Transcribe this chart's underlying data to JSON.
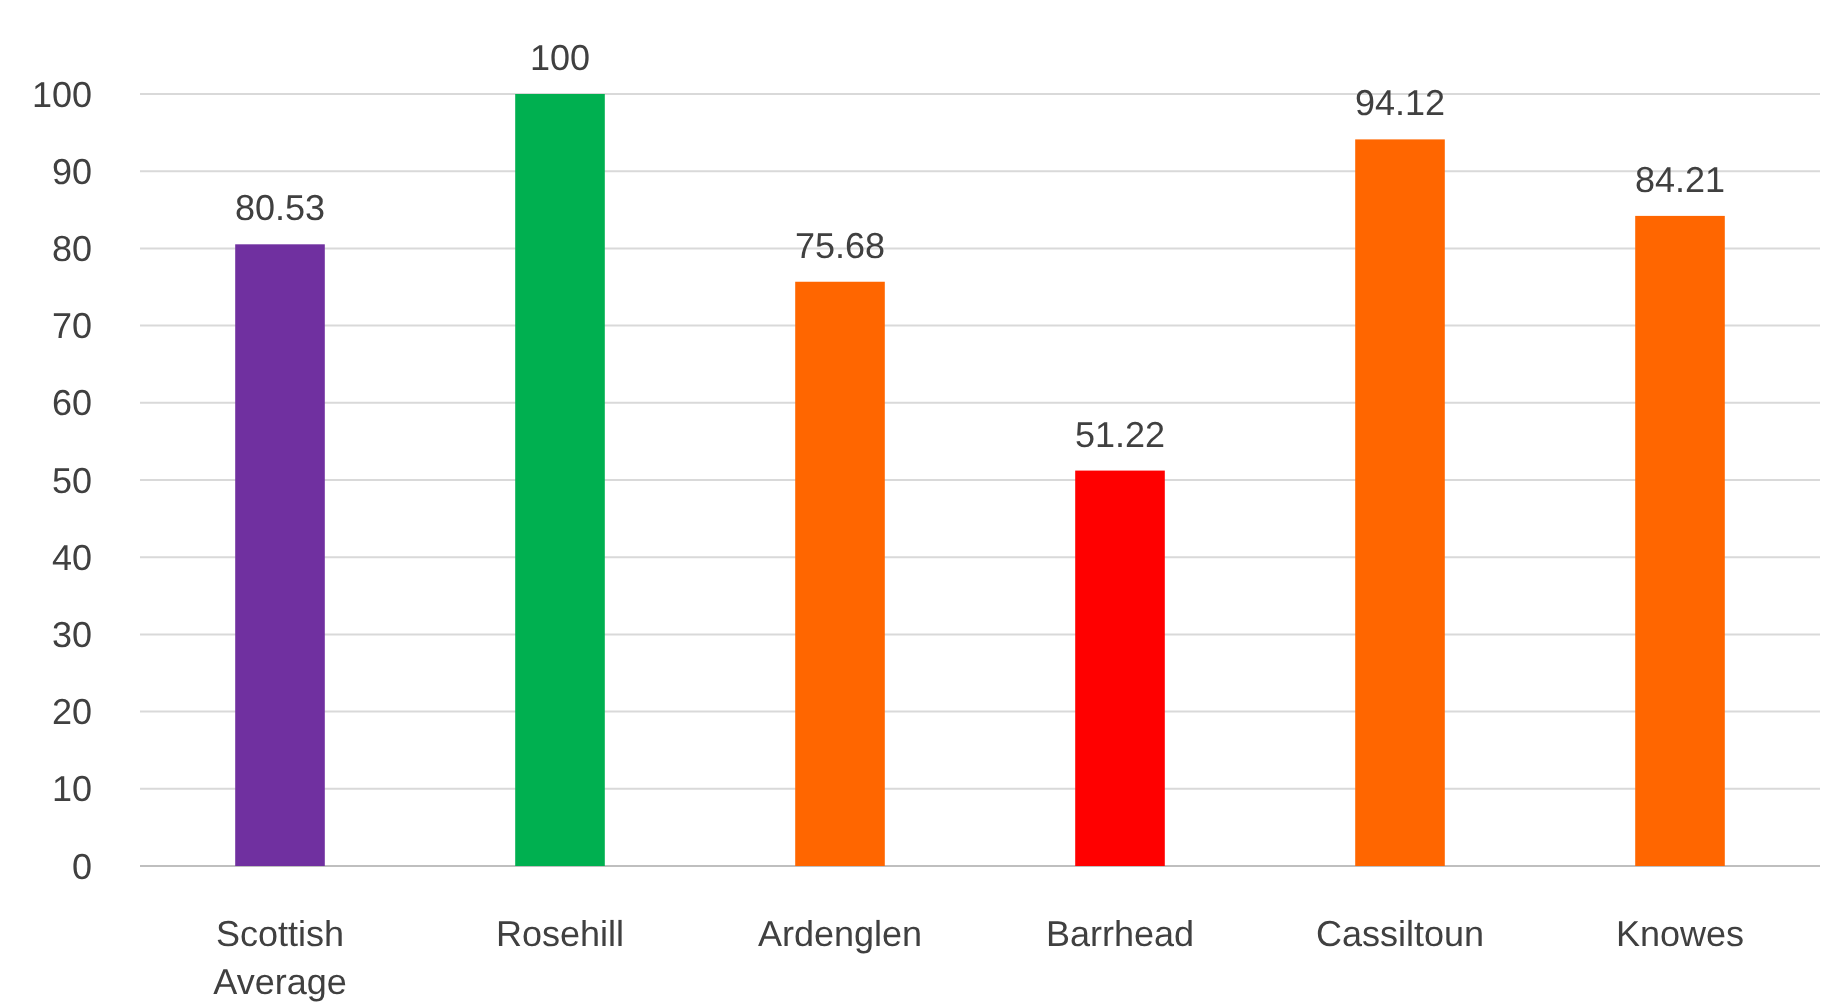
{
  "chart_data": {
    "type": "bar",
    "categories": [
      "Scottish Average",
      "Rosehill",
      "Ardenglen",
      "Barrhead",
      "Cassiltoun",
      "Knowes"
    ],
    "values": [
      80.53,
      100,
      75.68,
      51.22,
      94.12,
      84.21
    ],
    "colors": [
      "#7030a0",
      "#00b050",
      "#ff6600",
      "#ff0000",
      "#ff6600",
      "#ff6600"
    ],
    "ylim": [
      0,
      100
    ],
    "yticks": [
      0,
      10,
      20,
      30,
      40,
      50,
      60,
      70,
      80,
      90,
      100
    ],
    "grid": "y",
    "data_labels": true
  }
}
